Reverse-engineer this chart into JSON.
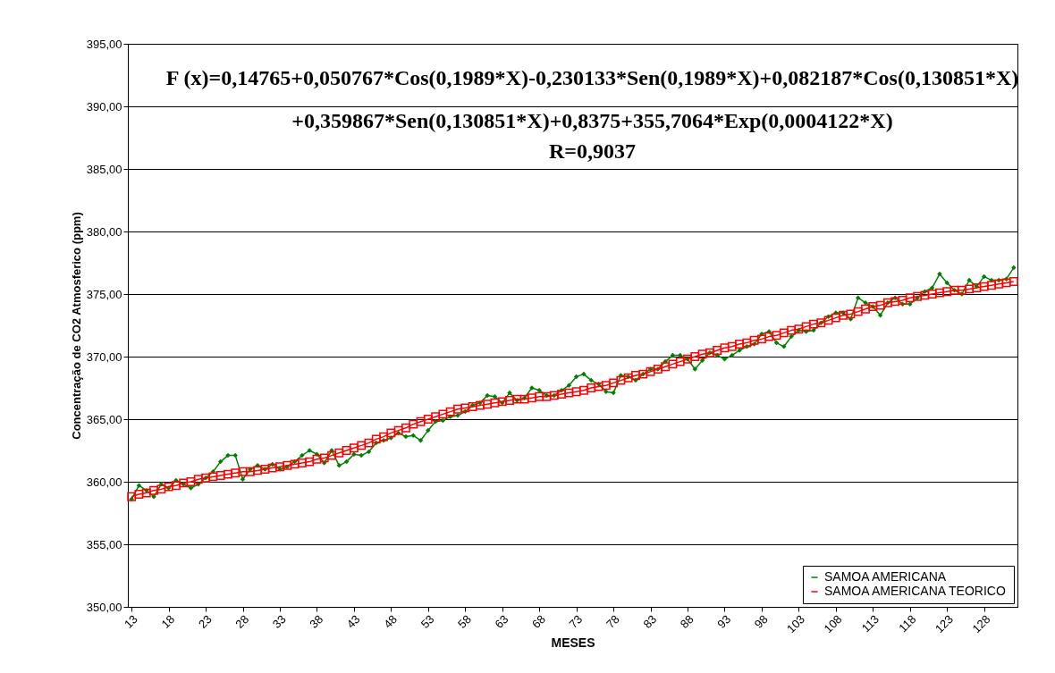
{
  "chart_data": {
    "type": "line",
    "xlabel": "MESES",
    "ylabel": "Concentração de CO2 Atmosferico (ppm)",
    "annotations": [
      "F (x)=0,14765+0,050767*Cos(0,1989*X)-0,230133*Sen(0,1989*X)+0,082187*Cos(0,130851*X)",
      "+0,359867*Sen(0,130851*X)+0,8375+355,7064*Exp(0,0004122*X)",
      "R=0,9037"
    ],
    "x": [
      13,
      14,
      15,
      16,
      17,
      18,
      19,
      20,
      21,
      22,
      23,
      24,
      25,
      26,
      27,
      28,
      29,
      30,
      31,
      32,
      33,
      34,
      35,
      36,
      37,
      38,
      39,
      40,
      41,
      42,
      43,
      44,
      45,
      46,
      47,
      48,
      49,
      50,
      51,
      52,
      53,
      54,
      55,
      56,
      57,
      58,
      59,
      60,
      61,
      62,
      63,
      64,
      65,
      66,
      67,
      68,
      69,
      70,
      71,
      72,
      73,
      74,
      75,
      76,
      77,
      78,
      79,
      80,
      81,
      82,
      83,
      84,
      85,
      86,
      87,
      88,
      89,
      90,
      91,
      92,
      93,
      94,
      95,
      96,
      97,
      98,
      99,
      100,
      101,
      102,
      103,
      104,
      105,
      106,
      107,
      108,
      109,
      110,
      111,
      112,
      113,
      114,
      115,
      116,
      117,
      118,
      119,
      120,
      121,
      122,
      123,
      124,
      125,
      126,
      127,
      128,
      129,
      130,
      131,
      132
    ],
    "series": [
      {
        "name": "SAMOA AMERICANA",
        "color": "#008000",
        "marker": "diamond",
        "values": [
          358.6,
          359.7,
          359.3,
          358.8,
          359.8,
          359.5,
          360.1,
          359.8,
          359.5,
          359.8,
          360.3,
          360.8,
          361.6,
          362.1,
          362.1,
          360.2,
          361.0,
          361.3,
          361.0,
          361.4,
          361.0,
          361.2,
          361.6,
          362.1,
          362.5,
          362.2,
          361.5,
          362.5,
          361.3,
          361.6,
          362.2,
          362.1,
          362.4,
          363.1,
          363.3,
          363.5,
          363.9,
          363.6,
          363.7,
          363.3,
          364.1,
          364.8,
          364.9,
          365.2,
          365.3,
          365.6,
          366.1,
          366.3,
          366.9,
          366.8,
          366.3,
          367.1,
          366.5,
          366.7,
          367.5,
          367.3,
          366.9,
          366.9,
          367.3,
          367.7,
          368.4,
          368.6,
          368.1,
          367.8,
          367.2,
          367.1,
          368.5,
          368.4,
          368.1,
          368.6,
          369.0,
          369.0,
          369.6,
          370.1,
          370.1,
          369.8,
          369.0,
          369.7,
          370.3,
          370.1,
          369.8,
          370.1,
          370.5,
          370.8,
          371.0,
          371.8,
          372.0,
          371.1,
          370.8,
          371.6,
          372.1,
          372.0,
          372.1,
          372.7,
          373.2,
          373.5,
          373.5,
          373.0,
          374.7,
          374.3,
          374.0,
          373.3,
          374.3,
          374.7,
          374.2,
          374.2,
          374.7,
          375.2,
          375.5,
          376.6,
          375.9,
          375.3,
          375.0,
          376.1,
          375.6,
          376.4,
          376.1,
          376.1,
          376.2,
          377.1
        ]
      },
      {
        "name": "SAMOA AMERICANA TEORICO",
        "color": "#ff0000",
        "marker": "square",
        "values": [
          358.8,
          359.0,
          359.1,
          359.3,
          359.4,
          359.6,
          359.7,
          359.9,
          360.0,
          360.2,
          360.3,
          360.4,
          360.5,
          360.6,
          360.7,
          360.8,
          360.8,
          360.9,
          361.0,
          361.1,
          361.2,
          361.3,
          361.4,
          361.5,
          361.6,
          361.8,
          361.9,
          362.1,
          362.3,
          362.5,
          362.7,
          362.9,
          363.1,
          363.4,
          363.6,
          363.9,
          364.1,
          364.3,
          364.6,
          364.8,
          365.0,
          365.2,
          365.4,
          365.6,
          365.8,
          365.9,
          366.0,
          366.1,
          366.2,
          366.3,
          366.4,
          366.5,
          366.6,
          366.6,
          366.7,
          366.8,
          366.8,
          366.9,
          367.0,
          367.1,
          367.2,
          367.3,
          367.5,
          367.6,
          367.7,
          367.9,
          368.1,
          368.3,
          368.5,
          368.6,
          368.8,
          369.0,
          369.2,
          369.4,
          369.6,
          369.8,
          370.0,
          370.2,
          370.3,
          370.5,
          370.7,
          370.8,
          371.0,
          371.1,
          371.3,
          371.4,
          371.6,
          371.7,
          371.9,
          372.1,
          372.2,
          372.4,
          372.6,
          372.7,
          372.9,
          373.1,
          373.3,
          373.4,
          373.6,
          373.8,
          374.0,
          374.1,
          374.3,
          374.4,
          374.5,
          374.7,
          374.8,
          374.9,
          375.0,
          375.1,
          375.2,
          375.3,
          375.3,
          375.4,
          375.5,
          375.6,
          375.7,
          375.8,
          375.9,
          376.0
        ]
      }
    ],
    "xlim": [
      12.5,
      132.5
    ],
    "xticks": [
      13,
      18,
      23,
      28,
      33,
      38,
      43,
      48,
      53,
      58,
      63,
      68,
      73,
      78,
      83,
      88,
      93,
      98,
      103,
      108,
      113,
      118,
      123,
      128
    ],
    "ylim": [
      350,
      395
    ],
    "yticks": [
      {
        "value": 350,
        "label": "350,00"
      },
      {
        "value": 355,
        "label": "355,00"
      },
      {
        "value": 360,
        "label": "360,00"
      },
      {
        "value": 365,
        "label": "365,00"
      },
      {
        "value": 370,
        "label": "370,00"
      },
      {
        "value": 375,
        "label": "375,00"
      },
      {
        "value": 380,
        "label": "380,00"
      },
      {
        "value": 385,
        "label": "385,00"
      },
      {
        "value": 390,
        "label": "390,00"
      },
      {
        "value": 395,
        "label": "395,00"
      }
    ],
    "grid": "y",
    "line_style": "solid",
    "legend": "bottom right"
  }
}
